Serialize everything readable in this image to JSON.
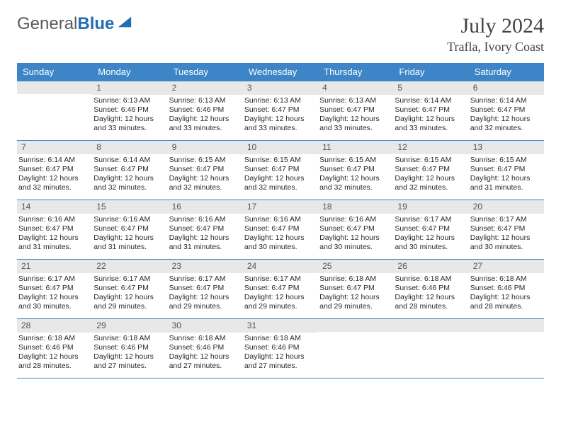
{
  "logo": {
    "text1": "General",
    "text2": "Blue"
  },
  "title": {
    "month": "July 2024",
    "location": "Trafla, Ivory Coast"
  },
  "colors": {
    "header_bg": "#3d85c6",
    "header_text": "#ffffff",
    "daynum_bg": "#e8e8e8",
    "border": "#3d85c6",
    "body_text": "#2a2a2a"
  },
  "weekdays": [
    "Sunday",
    "Monday",
    "Tuesday",
    "Wednesday",
    "Thursday",
    "Friday",
    "Saturday"
  ],
  "weeks": [
    [
      {
        "n": "",
        "sr": "",
        "ss": "",
        "dl": ""
      },
      {
        "n": "1",
        "sr": "Sunrise: 6:13 AM",
        "ss": "Sunset: 6:46 PM",
        "dl": "Daylight: 12 hours and 33 minutes."
      },
      {
        "n": "2",
        "sr": "Sunrise: 6:13 AM",
        "ss": "Sunset: 6:46 PM",
        "dl": "Daylight: 12 hours and 33 minutes."
      },
      {
        "n": "3",
        "sr": "Sunrise: 6:13 AM",
        "ss": "Sunset: 6:47 PM",
        "dl": "Daylight: 12 hours and 33 minutes."
      },
      {
        "n": "4",
        "sr": "Sunrise: 6:13 AM",
        "ss": "Sunset: 6:47 PM",
        "dl": "Daylight: 12 hours and 33 minutes."
      },
      {
        "n": "5",
        "sr": "Sunrise: 6:14 AM",
        "ss": "Sunset: 6:47 PM",
        "dl": "Daylight: 12 hours and 33 minutes."
      },
      {
        "n": "6",
        "sr": "Sunrise: 6:14 AM",
        "ss": "Sunset: 6:47 PM",
        "dl": "Daylight: 12 hours and 32 minutes."
      }
    ],
    [
      {
        "n": "7",
        "sr": "Sunrise: 6:14 AM",
        "ss": "Sunset: 6:47 PM",
        "dl": "Daylight: 12 hours and 32 minutes."
      },
      {
        "n": "8",
        "sr": "Sunrise: 6:14 AM",
        "ss": "Sunset: 6:47 PM",
        "dl": "Daylight: 12 hours and 32 minutes."
      },
      {
        "n": "9",
        "sr": "Sunrise: 6:15 AM",
        "ss": "Sunset: 6:47 PM",
        "dl": "Daylight: 12 hours and 32 minutes."
      },
      {
        "n": "10",
        "sr": "Sunrise: 6:15 AM",
        "ss": "Sunset: 6:47 PM",
        "dl": "Daylight: 12 hours and 32 minutes."
      },
      {
        "n": "11",
        "sr": "Sunrise: 6:15 AM",
        "ss": "Sunset: 6:47 PM",
        "dl": "Daylight: 12 hours and 32 minutes."
      },
      {
        "n": "12",
        "sr": "Sunrise: 6:15 AM",
        "ss": "Sunset: 6:47 PM",
        "dl": "Daylight: 12 hours and 32 minutes."
      },
      {
        "n": "13",
        "sr": "Sunrise: 6:15 AM",
        "ss": "Sunset: 6:47 PM",
        "dl": "Daylight: 12 hours and 31 minutes."
      }
    ],
    [
      {
        "n": "14",
        "sr": "Sunrise: 6:16 AM",
        "ss": "Sunset: 6:47 PM",
        "dl": "Daylight: 12 hours and 31 minutes."
      },
      {
        "n": "15",
        "sr": "Sunrise: 6:16 AM",
        "ss": "Sunset: 6:47 PM",
        "dl": "Daylight: 12 hours and 31 minutes."
      },
      {
        "n": "16",
        "sr": "Sunrise: 6:16 AM",
        "ss": "Sunset: 6:47 PM",
        "dl": "Daylight: 12 hours and 31 minutes."
      },
      {
        "n": "17",
        "sr": "Sunrise: 6:16 AM",
        "ss": "Sunset: 6:47 PM",
        "dl": "Daylight: 12 hours and 30 minutes."
      },
      {
        "n": "18",
        "sr": "Sunrise: 6:16 AM",
        "ss": "Sunset: 6:47 PM",
        "dl": "Daylight: 12 hours and 30 minutes."
      },
      {
        "n": "19",
        "sr": "Sunrise: 6:17 AM",
        "ss": "Sunset: 6:47 PM",
        "dl": "Daylight: 12 hours and 30 minutes."
      },
      {
        "n": "20",
        "sr": "Sunrise: 6:17 AM",
        "ss": "Sunset: 6:47 PM",
        "dl": "Daylight: 12 hours and 30 minutes."
      }
    ],
    [
      {
        "n": "21",
        "sr": "Sunrise: 6:17 AM",
        "ss": "Sunset: 6:47 PM",
        "dl": "Daylight: 12 hours and 30 minutes."
      },
      {
        "n": "22",
        "sr": "Sunrise: 6:17 AM",
        "ss": "Sunset: 6:47 PM",
        "dl": "Daylight: 12 hours and 29 minutes."
      },
      {
        "n": "23",
        "sr": "Sunrise: 6:17 AM",
        "ss": "Sunset: 6:47 PM",
        "dl": "Daylight: 12 hours and 29 minutes."
      },
      {
        "n": "24",
        "sr": "Sunrise: 6:17 AM",
        "ss": "Sunset: 6:47 PM",
        "dl": "Daylight: 12 hours and 29 minutes."
      },
      {
        "n": "25",
        "sr": "Sunrise: 6:18 AM",
        "ss": "Sunset: 6:47 PM",
        "dl": "Daylight: 12 hours and 29 minutes."
      },
      {
        "n": "26",
        "sr": "Sunrise: 6:18 AM",
        "ss": "Sunset: 6:46 PM",
        "dl": "Daylight: 12 hours and 28 minutes."
      },
      {
        "n": "27",
        "sr": "Sunrise: 6:18 AM",
        "ss": "Sunset: 6:46 PM",
        "dl": "Daylight: 12 hours and 28 minutes."
      }
    ],
    [
      {
        "n": "28",
        "sr": "Sunrise: 6:18 AM",
        "ss": "Sunset: 6:46 PM",
        "dl": "Daylight: 12 hours and 28 minutes."
      },
      {
        "n": "29",
        "sr": "Sunrise: 6:18 AM",
        "ss": "Sunset: 6:46 PM",
        "dl": "Daylight: 12 hours and 27 minutes."
      },
      {
        "n": "30",
        "sr": "Sunrise: 6:18 AM",
        "ss": "Sunset: 6:46 PM",
        "dl": "Daylight: 12 hours and 27 minutes."
      },
      {
        "n": "31",
        "sr": "Sunrise: 6:18 AM",
        "ss": "Sunset: 6:46 PM",
        "dl": "Daylight: 12 hours and 27 minutes."
      },
      {
        "n": "",
        "sr": "",
        "ss": "",
        "dl": ""
      },
      {
        "n": "",
        "sr": "",
        "ss": "",
        "dl": ""
      },
      {
        "n": "",
        "sr": "",
        "ss": "",
        "dl": ""
      }
    ]
  ]
}
